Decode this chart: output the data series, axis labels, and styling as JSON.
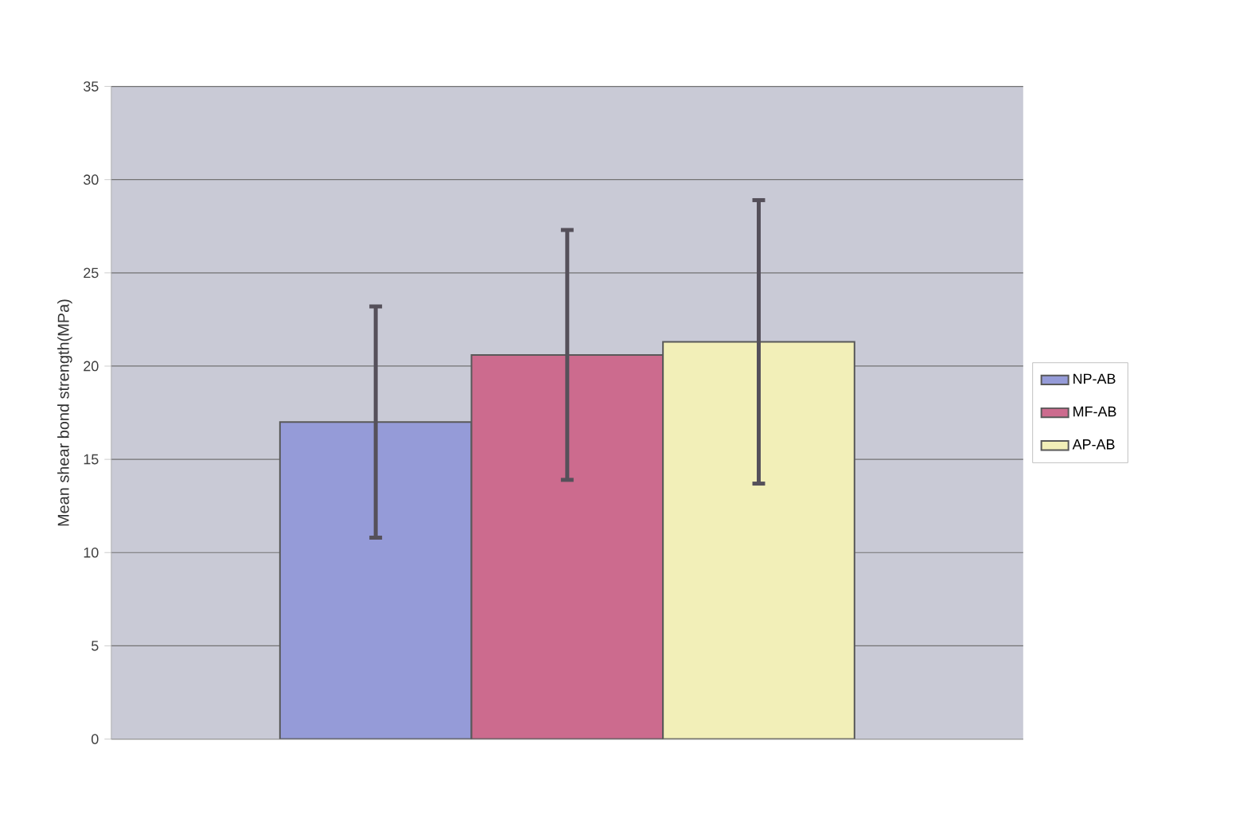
{
  "chart_data": {
    "type": "bar",
    "ylabel": "Mean shear bond strength(MPa)",
    "categories": [
      null
    ],
    "series": [
      {
        "name": "NP-AB",
        "color": "#959bd8",
        "values": [
          17.0
        ],
        "errors": [
          6.2
        ]
      },
      {
        "name": "MF-AB",
        "color": "#cc6b8e",
        "values": [
          20.6
        ],
        "errors": [
          6.7
        ]
      },
      {
        "name": "AP-AB",
        "color": "#f2efb8",
        "values": [
          21.3
        ],
        "errors": [
          7.6
        ]
      }
    ],
    "ylim": [
      0,
      35
    ],
    "yticks": [
      0,
      5,
      10,
      15,
      20,
      25,
      30,
      35
    ],
    "grid": "y",
    "legend": "right"
  }
}
